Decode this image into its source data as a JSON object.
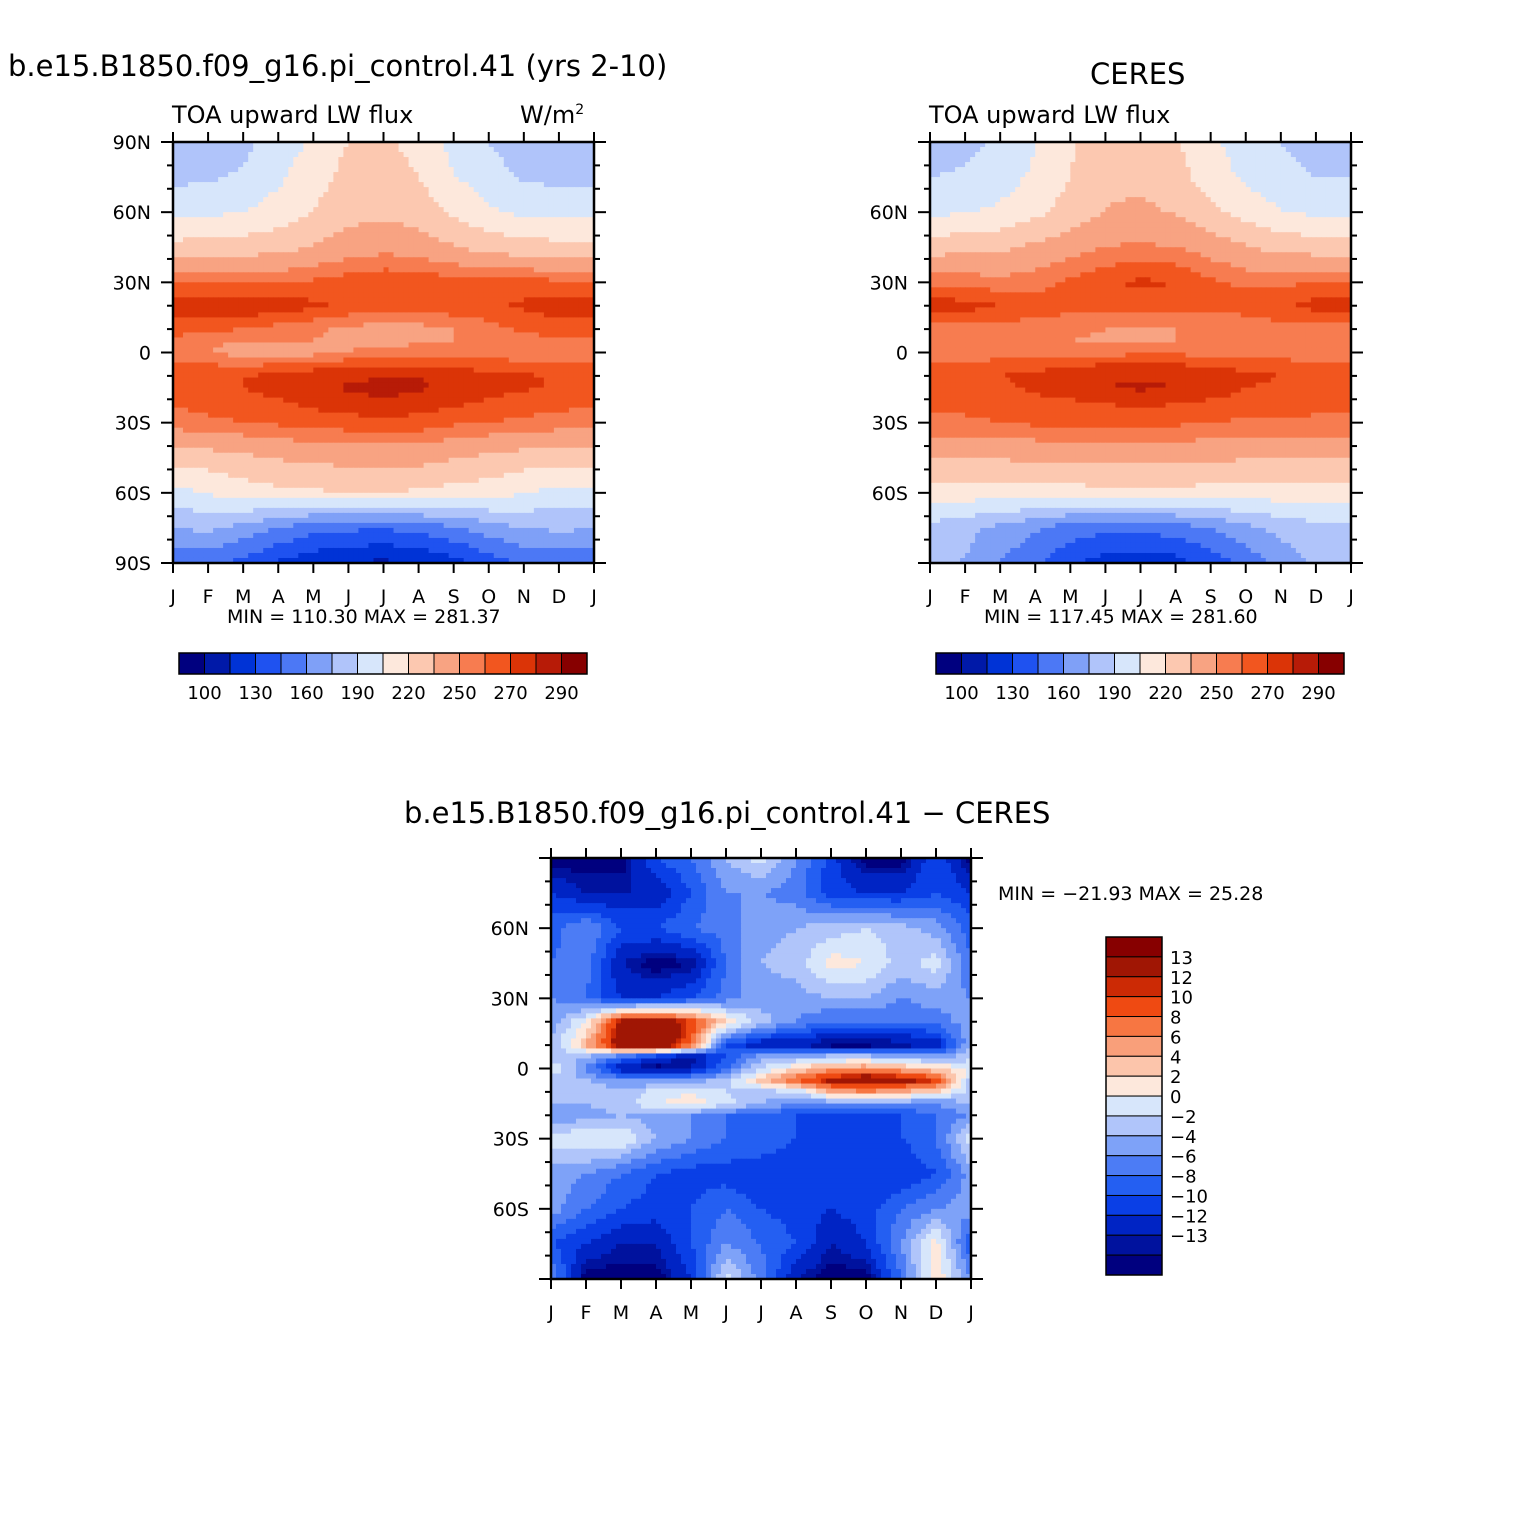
{
  "panels": [
    {
      "id": "model",
      "title": "b.e15.B1850.f09_g16.pi_control.41 (yrs 2-10)",
      "subtitle": "TOA upward LW flux",
      "units": "W/m",
      "units_sup": "2",
      "stats": "MIN = 110.30 MAX = 281.37"
    },
    {
      "id": "ceres",
      "title": "CERES",
      "subtitle": "TOA upward LW flux",
      "stats": "MIN = 117.45 MAX = 281.60"
    },
    {
      "id": "diff",
      "title": "b.e15.B1850.f09_g16.pi_control.41 − CERES",
      "stats": "MIN = −21.93 MAX =  25.28"
    }
  ],
  "palettes": {
    "flux": [
      "#00007f",
      "#0019a8",
      "#0033d6",
      "#1f52f0",
      "#4c78f5",
      "#7fa0f7",
      "#b0c4fa",
      "#d7e6fb",
      "#fde8dc",
      "#fcc8b0",
      "#f8a382",
      "#f77c50",
      "#f2561f",
      "#db3407",
      "#b71b07",
      "#870000"
    ],
    "diff": [
      "#00007f",
      "#00129e",
      "#0024c4",
      "#0a3fe6",
      "#245ff2",
      "#4c7cf5",
      "#7ea2f8",
      "#b0c5fa",
      "#d7e6fb",
      "#fde8dc",
      "#fcc5ab",
      "#f99f7a",
      "#f77642",
      "#ef4a12",
      "#cc2a05",
      "#a01604",
      "#870000"
    ]
  },
  "chart_data": [
    {
      "type": "heatmap",
      "panel": "model",
      "title": "b.e15.B1850.f09_g16.pi_control.41 (yrs 2-10)",
      "subtitle": "TOA upward LW flux",
      "units": "W/m2",
      "x_labels": [
        "J",
        "F",
        "M",
        "A",
        "M",
        "J",
        "J",
        "A",
        "S",
        "O",
        "N",
        "D",
        "J"
      ],
      "y_ticks": [
        90,
        60,
        30,
        0,
        -30,
        -60,
        -90
      ],
      "y_labels": [
        "90N",
        "60N",
        "30N",
        "0",
        "30S",
        "60S",
        "90S"
      ],
      "ylim": [
        -90,
        90
      ],
      "colorbar_labels": [
        "100",
        "130",
        "160",
        "190",
        "220",
        "250",
        "270",
        "290"
      ],
      "levels": [
        100,
        115,
        130,
        145,
        160,
        175,
        190,
        205,
        220,
        235,
        250,
        260,
        270,
        280,
        290
      ],
      "min": 110.3,
      "max": 281.37,
      "lats": [
        90,
        75,
        60,
        45,
        30,
        20,
        10,
        5,
        0,
        -5,
        -10,
        -15,
        -20,
        -30,
        -45,
        -60,
        -75,
        -90
      ],
      "values": [
        [
          178,
          180,
          186,
          196,
          208,
          220,
          223,
          214,
          200,
          190,
          182,
          178,
          178
        ],
        [
          186,
          188,
          192,
          202,
          214,
          225,
          228,
          220,
          206,
          196,
          188,
          186,
          186
        ],
        [
          200,
          202,
          205,
          212,
          220,
          230,
          232,
          228,
          218,
          208,
          202,
          200,
          200
        ],
        [
          225,
          226,
          227,
          230,
          236,
          242,
          246,
          243,
          236,
          229,
          226,
          225,
          225
        ],
        [
          260,
          260,
          259,
          259,
          262,
          266,
          268,
          267,
          265,
          264,
          264,
          262,
          260
        ],
        [
          276,
          276,
          278,
          277,
          272,
          268,
          266,
          266,
          267,
          268,
          272,
          276,
          276
        ],
        [
          264,
          262,
          260,
          256,
          252,
          248,
          244,
          246,
          250,
          256,
          262,
          264,
          264
        ],
        [
          258,
          252,
          250,
          250,
          250,
          248,
          244,
          248,
          250,
          254,
          256,
          258,
          258
        ],
        [
          254,
          250,
          246,
          242,
          246,
          250,
          254,
          256,
          256,
          256,
          254,
          252,
          254
        ],
        [
          262,
          260,
          258,
          260,
          264,
          266,
          266,
          266,
          264,
          264,
          262,
          260,
          262
        ],
        [
          266,
          268,
          270,
          272,
          276,
          278,
          280,
          280,
          278,
          274,
          272,
          268,
          266
        ],
        [
          266,
          268,
          270,
          274,
          278,
          281,
          282,
          281,
          278,
          274,
          272,
          268,
          266
        ],
        [
          262,
          264,
          266,
          270,
          274,
          278,
          280,
          278,
          274,
          270,
          266,
          264,
          262
        ],
        [
          256,
          258,
          260,
          262,
          264,
          266,
          266,
          266,
          262,
          260,
          258,
          256,
          256
        ],
        [
          226,
          228,
          232,
          236,
          238,
          240,
          240,
          240,
          236,
          232,
          228,
          226,
          226
        ],
        [
          200,
          206,
          212,
          216,
          218,
          220,
          220,
          218,
          214,
          212,
          206,
          200,
          200
        ],
        [
          175,
          178,
          170,
          160,
          150,
          148,
          146,
          150,
          158,
          168,
          175,
          178,
          175
        ],
        [
          150,
          150,
          140,
          128,
          120,
          114,
          112,
          116,
          124,
          136,
          148,
          150,
          150
        ]
      ]
    },
    {
      "type": "heatmap",
      "panel": "ceres",
      "title": "CERES",
      "subtitle": "TOA upward LW flux",
      "x_labels": [
        "J",
        "F",
        "M",
        "A",
        "M",
        "J",
        "J",
        "A",
        "S",
        "O",
        "N",
        "D",
        "J"
      ],
      "y_ticks": [
        60,
        30,
        0,
        -30,
        -60
      ],
      "y_labels": [
        "60N",
        "30N",
        "0",
        "30S",
        "60S"
      ],
      "ylim": [
        -90,
        90
      ],
      "colorbar_labels": [
        "100",
        "130",
        "160",
        "190",
        "220",
        "250",
        "270",
        "290"
      ],
      "levels": [
        100,
        115,
        130,
        145,
        160,
        175,
        190,
        205,
        220,
        235,
        250,
        260,
        270,
        280,
        290
      ],
      "min": 117.45,
      "max": 281.6,
      "lats": [
        90,
        75,
        60,
        45,
        30,
        20,
        10,
        5,
        0,
        -5,
        -10,
        -15,
        -20,
        -30,
        -45,
        -60,
        -75,
        -90
      ],
      "values": [
        [
          182,
          186,
          192,
          204,
          218,
          228,
          230,
          222,
          208,
          198,
          190,
          184,
          182
        ],
        [
          190,
          192,
          198,
          208,
          220,
          230,
          232,
          226,
          212,
          202,
          194,
          190,
          190
        ],
        [
          202,
          204,
          208,
          216,
          226,
          236,
          238,
          234,
          224,
          214,
          206,
          202,
          202
        ],
        [
          228,
          230,
          232,
          238,
          244,
          250,
          252,
          250,
          244,
          236,
          230,
          228,
          228
        ],
        [
          258,
          256,
          254,
          256,
          262,
          268,
          272,
          270,
          262,
          258,
          258,
          260,
          258
        ],
        [
          276,
          274,
          270,
          266,
          264,
          264,
          266,
          266,
          264,
          264,
          268,
          274,
          276
        ],
        [
          256,
          256,
          256,
          254,
          252,
          250,
          248,
          250,
          252,
          254,
          256,
          256,
          256
        ],
        [
          252,
          252,
          252,
          250,
          250,
          248,
          250,
          250,
          250,
          252,
          252,
          252,
          252
        ],
        [
          254,
          254,
          254,
          256,
          256,
          256,
          258,
          258,
          256,
          256,
          254,
          254,
          254
        ],
        [
          262,
          262,
          264,
          266,
          268,
          270,
          270,
          270,
          268,
          266,
          264,
          262,
          262
        ],
        [
          268,
          268,
          270,
          272,
          276,
          278,
          278,
          278,
          276,
          272,
          270,
          268,
          268
        ],
        [
          266,
          266,
          268,
          272,
          276,
          280,
          282,
          280,
          276,
          270,
          268,
          266,
          266
        ],
        [
          264,
          264,
          266,
          268,
          270,
          272,
          274,
          272,
          270,
          268,
          266,
          264,
          264
        ],
        [
          258,
          258,
          260,
          262,
          262,
          262,
          262,
          262,
          260,
          258,
          258,
          258,
          258
        ],
        [
          236,
          236,
          236,
          238,
          238,
          240,
          240,
          240,
          238,
          236,
          236,
          236,
          236
        ],
        [
          212,
          212,
          214,
          214,
          214,
          216,
          216,
          216,
          214,
          214,
          212,
          212,
          212
        ],
        [
          186,
          180,
          170,
          162,
          152,
          150,
          150,
          152,
          160,
          170,
          180,
          186,
          186
        ],
        [
          182,
          174,
          160,
          148,
          134,
          122,
          120,
          124,
          136,
          150,
          166,
          178,
          182
        ]
      ]
    },
    {
      "type": "heatmap",
      "panel": "diff",
      "title": "b.e15.B1850.f09_g16.pi_control.41 − CERES",
      "x_labels": [
        "J",
        "F",
        "M",
        "A",
        "M",
        "J",
        "J",
        "A",
        "S",
        "O",
        "N",
        "D",
        "J"
      ],
      "y_ticks": [
        60,
        30,
        0,
        -30,
        -60
      ],
      "y_labels": [
        "60N",
        "30N",
        "0",
        "30S",
        "60S"
      ],
      "ylim": [
        -90,
        90
      ],
      "colorbar_labels": [
        "13",
        "12",
        "10",
        "8",
        "6",
        "4",
        "2",
        "0",
        "−2",
        "−4",
        "−6",
        "−8",
        "−10",
        "−12",
        "−13"
      ],
      "levels": [
        -13,
        -12,
        -10,
        -8,
        -6,
        -4,
        -2,
        0,
        2,
        4,
        6,
        8,
        10,
        12,
        13
      ],
      "min": -21.93,
      "max": 25.28,
      "lats": [
        90,
        75,
        60,
        45,
        30,
        20,
        10,
        5,
        0,
        -5,
        -10,
        -15,
        -20,
        -30,
        -45,
        -60,
        -75,
        -90
      ],
      "values": [
        [
          -14,
          -14,
          -14,
          -8,
          -6,
          -2,
          1,
          -4,
          -9,
          -14,
          -14,
          -8,
          -14
        ],
        [
          -10,
          -12,
          -12,
          -12,
          -8,
          -4,
          -4,
          -5,
          -9,
          -10,
          -10,
          -8,
          -10
        ],
        [
          -7,
          -4,
          -8,
          -8,
          -6,
          -5,
          -3,
          -2,
          -1,
          0,
          -1,
          -3,
          -7
        ],
        [
          -6,
          -5,
          -12,
          -14,
          -13,
          -6,
          -2,
          -1,
          3,
          2,
          -1,
          1,
          -6
        ],
        [
          -4,
          -6,
          -10,
          -10,
          -8,
          -5,
          -3,
          -3,
          -2,
          -2,
          -4,
          -3,
          -4
        ],
        [
          -3,
          2,
          14,
          16,
          12,
          4,
          -1,
          -4,
          -6,
          -6,
          -6,
          -5,
          -3
        ],
        [
          -2,
          6,
          16,
          18,
          10,
          -8,
          -12,
          -12,
          -14,
          -14,
          -13,
          -12,
          -2
        ],
        [
          -1,
          -2,
          -6,
          -10,
          -13,
          -8,
          -3,
          -2,
          -1,
          -1,
          -2,
          -3,
          -1
        ],
        [
          2,
          -4,
          -12,
          -14,
          -12,
          -6,
          0,
          4,
          7,
          8,
          6,
          4,
          2
        ],
        [
          -1,
          -2,
          -4,
          -4,
          -3,
          -1,
          5,
          10,
          14,
          16,
          15,
          12,
          -1
        ],
        [
          -1,
          0,
          -2,
          1,
          2,
          0,
          -1,
          0,
          6,
          8,
          6,
          4,
          -1
        ],
        [
          -2,
          -2,
          -1,
          2,
          3,
          1,
          -2,
          -4,
          -4,
          -4,
          -4,
          -4,
          -2
        ],
        [
          -4,
          -3,
          -2,
          -3,
          -4,
          -6,
          -7,
          -8,
          -8,
          -8,
          -8,
          -6,
          -4
        ],
        [
          1,
          2,
          2,
          -2,
          -4,
          -6,
          -6,
          -8,
          -10,
          -10,
          -8,
          -6,
          1
        ],
        [
          -3,
          -4,
          -6,
          -8,
          -9,
          -9,
          -10,
          -10,
          -10,
          -10,
          -10,
          -8,
          -3
        ],
        [
          -3,
          -6,
          -8,
          -9,
          -8,
          -6,
          -8,
          -9,
          -10,
          -9,
          -6,
          -4,
          -3
        ],
        [
          -8,
          -10,
          -12,
          -12,
          -8,
          -4,
          -6,
          -8,
          -12,
          -10,
          -4,
          3,
          -8
        ],
        [
          -4,
          -14,
          -14,
          -14,
          -10,
          1,
          -5,
          -12,
          -14,
          -14,
          -6,
          4,
          -4
        ]
      ]
    }
  ]
}
